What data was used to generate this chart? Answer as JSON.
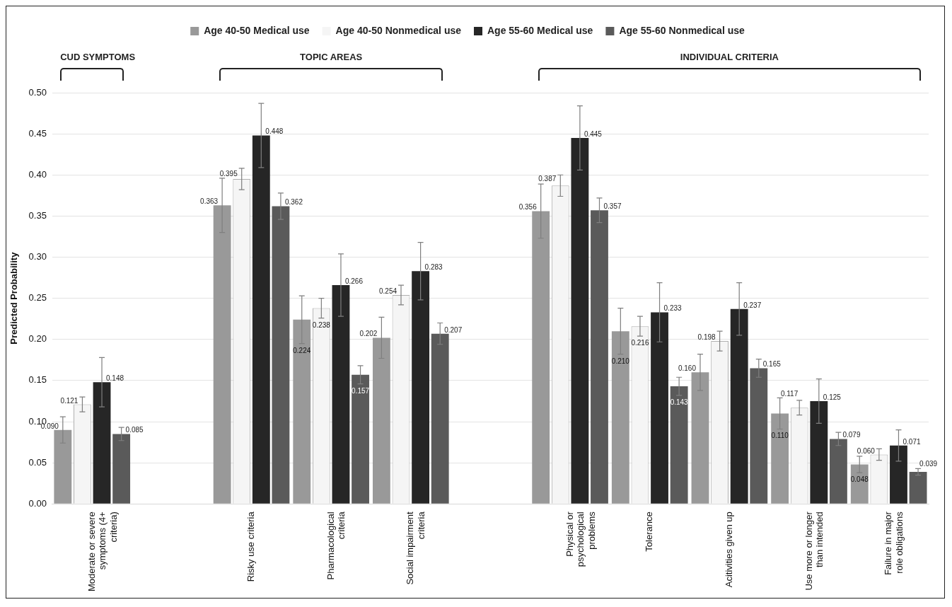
{
  "chart_data": {
    "type": "bar",
    "ylabel": "Predicted Probability",
    "categories": [
      "Moderate or severe symptoms (4+ criteria)",
      null,
      "Risky use criteria",
      "Pharmacological criteria",
      "Social impairment criteria",
      null,
      "Physical or psychological problems",
      "Tolerance",
      "Acitivities given up",
      "Use more or longer than intended",
      "Failure in major role obligations"
    ],
    "annotations": [
      "CUD SYMPTOMS",
      "TOPIC AREAS",
      "INDIVIDUAL CRITERIA"
    ],
    "series": [
      {
        "name": "Age 40-50 Medical use",
        "color": "#999999",
        "values": [
          0.09,
          null,
          0.363,
          0.224,
          0.202,
          null,
          0.356,
          0.21,
          0.16,
          0.11,
          0.048
        ],
        "value_labels": [
          "0.090",
          null,
          "0.363",
          "0.224",
          "0.202",
          null,
          "0.356",
          "0.210",
          "0.160",
          "0.110",
          "0.048"
        ],
        "errors": [
          0.016,
          null,
          0.033,
          0.029,
          0.025,
          null,
          0.033,
          0.028,
          0.022,
          0.019,
          0.01
        ]
      },
      {
        "name": "Age 40-50 Nonmedical use",
        "color": "#f5f5f5",
        "values": [
          0.121,
          null,
          0.395,
          0.238,
          0.254,
          null,
          0.387,
          0.216,
          0.198,
          0.117,
          0.06
        ],
        "value_labels": [
          "0.121",
          null,
          "0.395",
          "0.238",
          "0.254",
          null,
          "0.387",
          "0.216",
          "0.198",
          "0.117",
          "0.060"
        ],
        "errors": [
          0.009,
          null,
          0.013,
          0.012,
          0.012,
          null,
          0.013,
          0.012,
          0.012,
          0.009,
          0.007
        ]
      },
      {
        "name": "Age 55-60 Medical use",
        "color": "#262626",
        "values": [
          0.148,
          null,
          0.448,
          0.266,
          0.283,
          null,
          0.445,
          0.233,
          0.237,
          0.125,
          0.071
        ],
        "value_labels": [
          "0.148",
          null,
          "0.448",
          "0.266",
          "0.283",
          null,
          "0.445",
          "0.233",
          "0.237",
          "0.125",
          "0.071"
        ],
        "errors": [
          0.03,
          null,
          0.039,
          0.038,
          0.035,
          null,
          0.039,
          0.036,
          0.032,
          0.027,
          0.019
        ]
      },
      {
        "name": "Age 55-60 Nonmedical use",
        "color": "#5a5a5a",
        "values": [
          0.085,
          null,
          0.362,
          0.157,
          0.207,
          null,
          0.357,
          0.143,
          0.165,
          0.079,
          0.039
        ],
        "value_labels": [
          "0.085",
          null,
          "0.362",
          "0.157",
          "0.207",
          null,
          "0.357",
          "0.143",
          "0.165",
          "0.079",
          "0.039"
        ],
        "errors": [
          0.008,
          null,
          0.016,
          0.011,
          0.013,
          null,
          0.015,
          0.011,
          0.011,
          0.008,
          0.004
        ]
      }
    ],
    "ylim": [
      0,
      0.5
    ],
    "yticks": [
      {
        "value": 0,
        "label": "0.00"
      },
      0.05,
      {
        "value": 0.1,
        "label": "0.10"
      },
      0.15,
      {
        "value": 0.2,
        "label": "0.20"
      },
      0.25,
      {
        "value": 0.3,
        "label": "0.30"
      },
      0.35,
      {
        "value": 0.4,
        "label": "0.40"
      },
      0.45,
      {
        "value": 0.5,
        "label": "0.50"
      }
    ],
    "grid": "y",
    "legend": "top"
  }
}
